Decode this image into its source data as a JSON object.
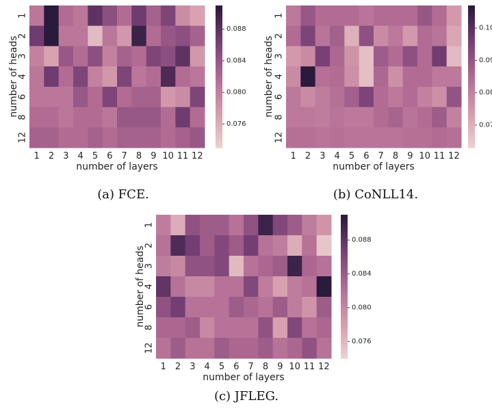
{
  "chart_data": [
    {
      "type": "heatmap",
      "caption": "(a) FCE.",
      "xlabel": "number of layers",
      "ylabel": "number of heads",
      "x_categories": [
        "1",
        "2",
        "3",
        "4",
        "5",
        "6",
        "7",
        "8",
        "9",
        "10",
        "11",
        "12"
      ],
      "y_categories": [
        "1",
        "2",
        "3",
        "4",
        "6",
        "8",
        "12"
      ],
      "colorbar_range": [
        0.073,
        0.091
      ],
      "colorbar_ticks": [
        "0.088",
        "0.084",
        "0.080",
        "0.076"
      ],
      "values": [
        [
          0.081,
          0.091,
          0.082,
          0.081,
          0.088,
          0.085,
          0.082,
          0.087,
          0.083,
          0.086,
          0.079,
          0.077
        ],
        [
          0.087,
          0.091,
          0.081,
          0.081,
          0.075,
          0.081,
          0.078,
          0.09,
          0.082,
          0.084,
          0.085,
          0.083
        ],
        [
          0.08,
          0.077,
          0.084,
          0.082,
          0.085,
          0.08,
          0.083,
          0.082,
          0.086,
          0.085,
          0.088,
          0.078
        ],
        [
          0.081,
          0.087,
          0.082,
          0.086,
          0.08,
          0.078,
          0.086,
          0.081,
          0.082,
          0.089,
          0.082,
          0.081
        ],
        [
          0.081,
          0.081,
          0.081,
          0.084,
          0.082,
          0.086,
          0.082,
          0.083,
          0.083,
          0.078,
          0.079,
          0.086
        ],
        [
          0.082,
          0.082,
          0.081,
          0.082,
          0.082,
          0.081,
          0.084,
          0.084,
          0.084,
          0.082,
          0.087,
          0.082
        ],
        [
          0.083,
          0.083,
          0.082,
          0.082,
          0.083,
          0.082,
          0.083,
          0.083,
          0.083,
          0.082,
          0.083,
          0.084
        ]
      ]
    },
    {
      "type": "heatmap",
      "caption": "(b) CoNLL14.",
      "xlabel": "number of layers",
      "ylabel": "number of heads",
      "x_categories": [
        "1",
        "2",
        "3",
        "4",
        "5",
        "6",
        "7",
        "8",
        "9",
        "10",
        "11",
        "12"
      ],
      "y_categories": [
        "1",
        "2",
        "3",
        "4",
        "6",
        "8",
        "12"
      ],
      "colorbar_range": [
        0.063,
        0.107
      ],
      "colorbar_ticks": [
        "0.10",
        "0.09",
        "0.08",
        "0.07"
      ],
      "values": [
        [
          0.082,
          0.09,
          0.085,
          0.085,
          0.085,
          0.083,
          0.085,
          0.085,
          0.085,
          0.09,
          0.085,
          0.075
        ],
        [
          0.085,
          0.095,
          0.083,
          0.088,
          0.07,
          0.092,
          0.078,
          0.082,
          0.075,
          0.085,
          0.083,
          0.072
        ],
        [
          0.075,
          0.078,
          0.096,
          0.086,
          0.076,
          0.067,
          0.089,
          0.085,
          0.092,
          0.085,
          0.097,
          0.068
        ],
        [
          0.078,
          0.107,
          0.084,
          0.085,
          0.077,
          0.067,
          0.086,
          0.077,
          0.085,
          0.085,
          0.082,
          0.082
        ],
        [
          0.082,
          0.078,
          0.081,
          0.084,
          0.088,
          0.095,
          0.085,
          0.082,
          0.085,
          0.08,
          0.077,
          0.091
        ],
        [
          0.082,
          0.082,
          0.081,
          0.083,
          0.082,
          0.082,
          0.085,
          0.087,
          0.083,
          0.085,
          0.089,
          0.08
        ],
        [
          0.084,
          0.084,
          0.083,
          0.084,
          0.083,
          0.083,
          0.083,
          0.083,
          0.084,
          0.084,
          0.085,
          0.084
        ]
      ]
    },
    {
      "type": "heatmap",
      "caption": "(c) JFLEG.",
      "xlabel": "number of layers",
      "ylabel": "number of heads",
      "x_categories": [
        "1",
        "2",
        "3",
        "4",
        "5",
        "6",
        "7",
        "8",
        "9",
        "10",
        "11",
        "12"
      ],
      "y_categories": [
        "1",
        "2",
        "3",
        "4",
        "6",
        "8",
        "12"
      ],
      "colorbar_range": [
        0.074,
        0.091
      ],
      "colorbar_ticks": [
        "0.088",
        "0.084",
        "0.080",
        "0.076"
      ],
      "values": [
        [
          0.081,
          0.077,
          0.085,
          0.084,
          0.084,
          0.082,
          0.085,
          0.09,
          0.086,
          0.084,
          0.081,
          0.079
        ],
        [
          0.082,
          0.089,
          0.087,
          0.084,
          0.086,
          0.084,
          0.087,
          0.082,
          0.081,
          0.077,
          0.082,
          0.075
        ],
        [
          0.081,
          0.08,
          0.085,
          0.085,
          0.086,
          0.076,
          0.082,
          0.083,
          0.084,
          0.09,
          0.083,
          0.082
        ],
        [
          0.088,
          0.082,
          0.08,
          0.08,
          0.082,
          0.082,
          0.086,
          0.081,
          0.078,
          0.081,
          0.082,
          0.091
        ],
        [
          0.085,
          0.087,
          0.082,
          0.082,
          0.082,
          0.084,
          0.083,
          0.082,
          0.084,
          0.081,
          0.079,
          0.084
        ],
        [
          0.083,
          0.083,
          0.084,
          0.08,
          0.082,
          0.082,
          0.082,
          0.085,
          0.078,
          0.086,
          0.082,
          0.083
        ],
        [
          0.082,
          0.084,
          0.082,
          0.082,
          0.084,
          0.083,
          0.083,
          0.084,
          0.082,
          0.083,
          0.085,
          0.082
        ]
      ]
    }
  ]
}
